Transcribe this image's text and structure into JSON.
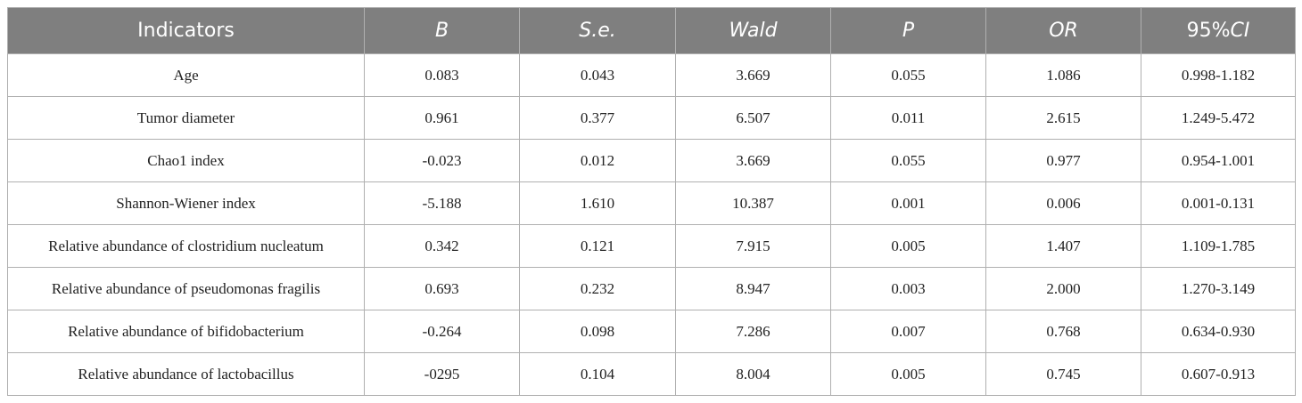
{
  "table": {
    "header": [
      "Indicators",
      "B",
      "S.e.",
      "Wald",
      "P",
      "OR",
      [
        "95%",
        "CI"
      ]
    ],
    "rows": [
      [
        "Age",
        "0.083",
        "0.043",
        "3.669",
        "0.055",
        "1.086",
        "0.998-1.182"
      ],
      [
        "Tumor diameter",
        "0.961",
        "0.377",
        "6.507",
        "0.011",
        "2.615",
        "1.249-5.472"
      ],
      [
        "Chao1 index",
        "-0.023",
        "0.012",
        "3.669",
        "0.055",
        "0.977",
        "0.954-1.001"
      ],
      [
        "Shannon-Wiener index",
        "-5.188",
        "1.610",
        "10.387",
        "0.001",
        "0.006",
        "0.001-0.131"
      ],
      [
        "Relative abundance of clostridium nucleatum",
        "0.342",
        "0.121",
        "7.915",
        "0.005",
        "1.407",
        "1.109-1.785"
      ],
      [
        "Relative abundance of pseudomonas fragilis",
        "0.693",
        "0.232",
        "8.947",
        "0.003",
        "2.000",
        "1.270-3.149"
      ],
      [
        "Relative abundance of bifidobacterium",
        "-0.264",
        "0.098",
        "7.286",
        "0.007",
        "0.768",
        "0.634-0.930"
      ],
      [
        "Relative abundance of lactobacillus",
        "-0295",
        "0.104",
        "8.004",
        "0.005",
        "0.745",
        "0.607-0.913"
      ]
    ]
  }
}
